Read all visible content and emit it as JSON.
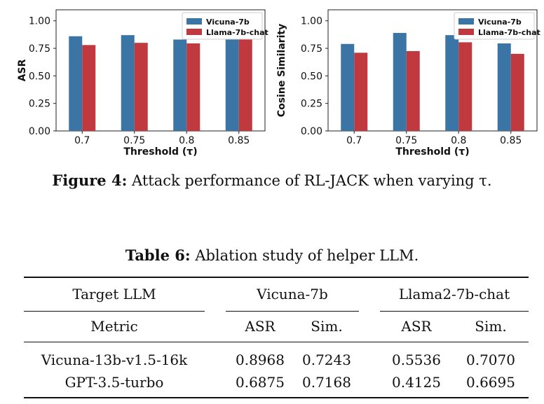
{
  "chart_data": [
    {
      "type": "bar",
      "categories": [
        "0.7",
        "0.75",
        "0.8",
        "0.85"
      ],
      "series": [
        {
          "name": "Vicuna-7b",
          "values": [
            0.86,
            0.87,
            0.83,
            0.835
          ]
        },
        {
          "name": "Llama-7b-chat",
          "values": [
            0.78,
            0.8,
            0.795,
            0.83
          ]
        }
      ],
      "xlabel": "Threshold (τ)",
      "ylabel": "ASR",
      "ylim": [
        0,
        1.1
      ],
      "yticks": [
        "0.00",
        "0.25",
        "0.50",
        "0.75",
        "1.00"
      ],
      "legend": "top-right",
      "colors": {
        "Vicuna-7b": "#3b75a5",
        "Llama-7b-chat": "#c0393f"
      }
    },
    {
      "type": "bar",
      "categories": [
        "0.7",
        "0.75",
        "0.8",
        "0.85"
      ],
      "series": [
        {
          "name": "Vicuna-7b",
          "values": [
            0.79,
            0.89,
            0.87,
            0.795
          ]
        },
        {
          "name": "Llama-7b-chat",
          "values": [
            0.71,
            0.725,
            0.805,
            0.7
          ]
        }
      ],
      "xlabel": "Threshold (τ)",
      "ylabel": "Cosine Similarity",
      "ylim": [
        0,
        1.1
      ],
      "yticks": [
        "0.00",
        "0.25",
        "0.50",
        "0.75",
        "1.00"
      ],
      "legend": "top-right",
      "colors": {
        "Vicuna-7b": "#3b75a5",
        "Llama-7b-chat": "#c0393f"
      }
    }
  ],
  "figure_caption": {
    "label": "Figure 4:",
    "text": "Attack performance of RL-JACK when varying τ."
  },
  "table_caption": {
    "label": "Table 6:",
    "text": "Ablation study of helper LLM."
  },
  "table": {
    "header": {
      "target_label": "Target LLM",
      "group1": "Vicuna-7b",
      "group2": "Llama2-7b-chat",
      "metric_label": "Metric",
      "asr": "ASR",
      "sim": "Sim."
    },
    "rows": [
      {
        "name": "Vicuna-13b-v1.5-16k",
        "v_asr": "0.8968",
        "v_sim": "0.7243",
        "l_asr": "0.5536",
        "l_sim": "0.7070"
      },
      {
        "name": "GPT-3.5-turbo",
        "v_asr": "0.6875",
        "v_sim": "0.7168",
        "l_asr": "0.4125",
        "l_sim": "0.6695"
      }
    ]
  }
}
